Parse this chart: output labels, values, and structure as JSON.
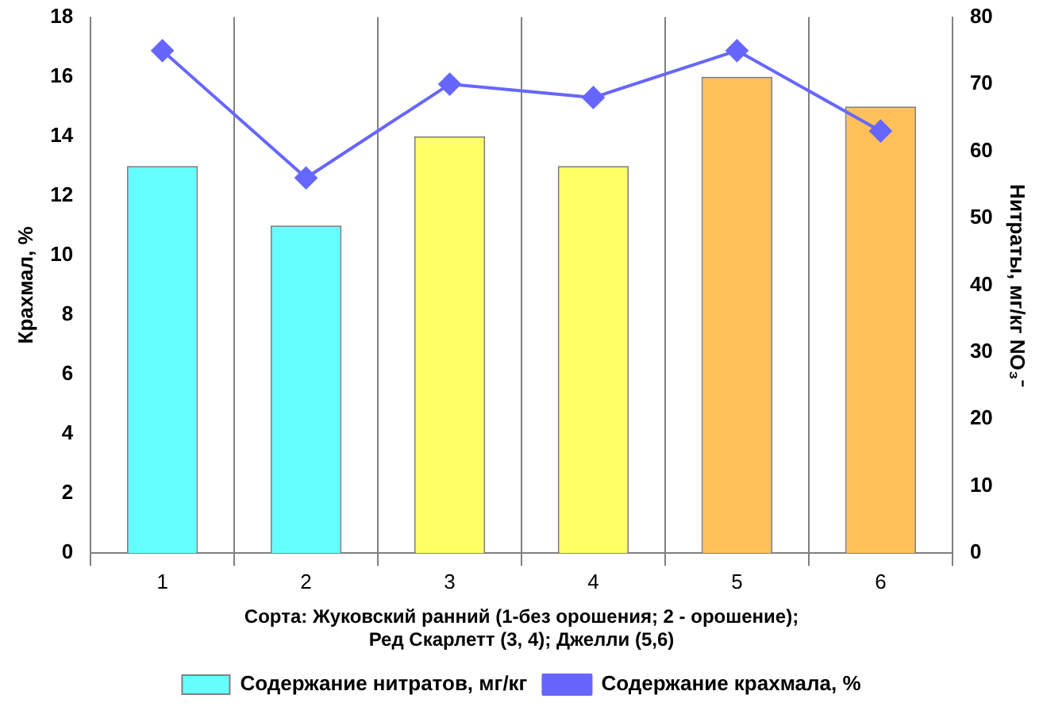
{
  "chart_data": {
    "type": "bar",
    "categories": [
      "1",
      "2",
      "3",
      "4",
      "5",
      "6"
    ],
    "xlabel": "Сорта: Жуковский ранний (1-без орошения; 2 - орошение);\nРед Скарлетт (3, 4); Джелли (5,6)",
    "ylabel": "Крахмал, %",
    "y2label": "Нитраты, мг/кг NO₃⁻",
    "series": [
      {
        "name": "Содержание нитратов, мг/кг",
        "colors": [
          "#66ffff",
          "#66ffff",
          "#ffff66",
          "#ffff66",
          "#ffc05a",
          "#ffc05a"
        ],
        "values": [
          13,
          11,
          14,
          13,
          16,
          15
        ]
      },
      {
        "name": "Содержание крахмала, %",
        "type": "line",
        "axis": "y2",
        "color": "#6666ff",
        "marker": "diamond",
        "values": [
          75,
          56,
          70,
          68,
          75,
          63
        ]
      }
    ],
    "ylim": [
      0,
      18
    ],
    "yticks": [
      0,
      2,
      4,
      6,
      8,
      10,
      12,
      14,
      16,
      18
    ],
    "y2lim": [
      0,
      80
    ],
    "y2ticks": [
      0,
      10,
      20,
      30,
      40,
      50,
      60,
      70,
      80
    ],
    "grid": "x",
    "legend": "bottom"
  }
}
